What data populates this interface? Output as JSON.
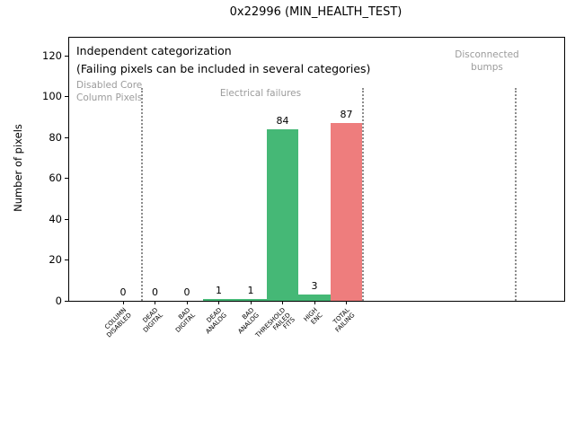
{
  "chart_data": {
    "type": "bar",
    "title": "0x22996 (MIN_HEALTH_TEST)",
    "xlabel": "",
    "ylabel": "Number of pixels",
    "ylim": [
      0,
      129
    ],
    "yticks": [
      0,
      20,
      40,
      60,
      80,
      100,
      120
    ],
    "grid": false,
    "legend": null,
    "categories": [
      "COLUMN\nDISABLED",
      "DEAD\nDIGITAL",
      "BAD\nDIGITAL",
      "DEAD\nANALOG",
      "BAD\nANALOG",
      "THRESHOLD\nFAILED\nFITS",
      "HIGH\nENC",
      "TOTAL\nFAILING"
    ],
    "values": [
      0,
      0,
      0,
      1,
      1,
      84,
      3,
      87
    ],
    "bar_value_labels": [
      "0",
      "0",
      "0",
      "1",
      "1",
      "84",
      "3",
      "87"
    ],
    "bar_colors": [
      "#45b876",
      "#45b876",
      "#45b876",
      "#45b876",
      "#45b876",
      "#45b876",
      "#45b876",
      "#ee7d7d"
    ],
    "annotations": {
      "note_line1": "Independent categorization",
      "note_line2": "(Failing pixels can be included in several categories)",
      "region_labels": [
        {
          "text": "Disabled Core\nColumn Pixels"
        },
        {
          "text": "Electrical failures"
        },
        {
          "text": "Disconnected\nbumps"
        }
      ],
      "separator_style": "dotted"
    }
  },
  "colors": {
    "bar_green": "#45b876",
    "bar_red": "#ee7d7d",
    "muted_text": "#9b9b9b",
    "separator": "#8c8c8c",
    "axis": "#000000",
    "background": "#ffffff"
  }
}
